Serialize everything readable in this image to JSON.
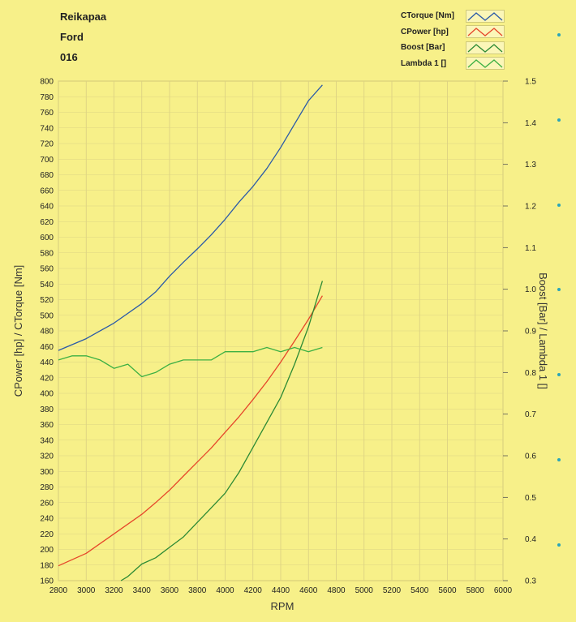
{
  "header": {
    "name": "Reikapaa",
    "make": "Ford",
    "code": "016"
  },
  "chart_data": {
    "type": "line",
    "xlabel": "RPM",
    "ylabel_left": "CPower [hp] / CTorque [Nm]",
    "ylabel_right": "Boost [Bar] / Lambda 1 []",
    "xlim": [
      2800,
      6000
    ],
    "ylim_left": [
      160,
      800
    ],
    "ylim_right": [
      0.3,
      1.5
    ],
    "x_ticks": [
      2800,
      3000,
      3200,
      3400,
      3600,
      3800,
      4000,
      4200,
      4400,
      4600,
      4800,
      5000,
      5200,
      5400,
      5600,
      5800,
      6000
    ],
    "y_left_ticks": [
      160,
      180,
      200,
      220,
      240,
      260,
      280,
      300,
      320,
      340,
      360,
      380,
      400,
      420,
      440,
      460,
      480,
      500,
      520,
      540,
      560,
      580,
      600,
      620,
      640,
      660,
      680,
      700,
      720,
      740,
      760,
      780,
      800
    ],
    "y_right_ticks": [
      "0.3",
      "0.4",
      "0.5",
      "0.6",
      "0.7",
      "0.8",
      "0.9",
      "1.0",
      "1.1",
      "1.2",
      "1.3",
      "1.4",
      "1.5"
    ],
    "grid": true,
    "legend_position": "top-right",
    "series": [
      {
        "name": "CTorque [Nm]",
        "axis": "left",
        "color": "#2a5aa8",
        "x": [
          2800,
          3000,
          3200,
          3400,
          3500,
          3600,
          3700,
          3800,
          3900,
          4000,
          4100,
          4200,
          4300,
          4400,
          4500,
          4600,
          4700
        ],
        "y": [
          455,
          470,
          490,
          515,
          530,
          550,
          568,
          585,
          603,
          623,
          645,
          665,
          688,
          715,
          745,
          775,
          795
        ]
      },
      {
        "name": "CPower [hp]",
        "axis": "left",
        "color": "#e6462a",
        "x": [
          2800,
          3000,
          3200,
          3400,
          3500,
          3600,
          3700,
          3800,
          3900,
          4000,
          4100,
          4200,
          4300,
          4400,
          4500,
          4600,
          4700
        ],
        "y": [
          179,
          195,
          220,
          245,
          260,
          276,
          294,
          312,
          330,
          350,
          370,
          392,
          415,
          440,
          467,
          495,
          525
        ]
      },
      {
        "name": "Boost [Bar]",
        "axis": "right",
        "color": "#2c8a34",
        "x": [
          3250,
          3300,
          3400,
          3500,
          3600,
          3700,
          3800,
          3900,
          4000,
          4100,
          4200,
          4300,
          4400,
          4500,
          4600,
          4700
        ],
        "y": [
          0.3,
          0.31,
          0.34,
          0.355,
          0.38,
          0.405,
          0.44,
          0.475,
          0.51,
          0.56,
          0.62,
          0.68,
          0.74,
          0.82,
          0.91,
          1.02
        ]
      },
      {
        "name": "Lambda 1 []",
        "axis": "right",
        "color": "#3cb043",
        "x": [
          2800,
          2900,
          3000,
          3100,
          3200,
          3300,
          3400,
          3500,
          3600,
          3700,
          3800,
          3900,
          4000,
          4100,
          4200,
          4300,
          4400,
          4500,
          4600,
          4700
        ],
        "y": [
          0.83,
          0.84,
          0.84,
          0.83,
          0.81,
          0.82,
          0.79,
          0.8,
          0.82,
          0.83,
          0.83,
          0.83,
          0.85,
          0.85,
          0.85,
          0.86,
          0.85,
          0.86,
          0.85,
          0.86
        ]
      }
    ]
  }
}
